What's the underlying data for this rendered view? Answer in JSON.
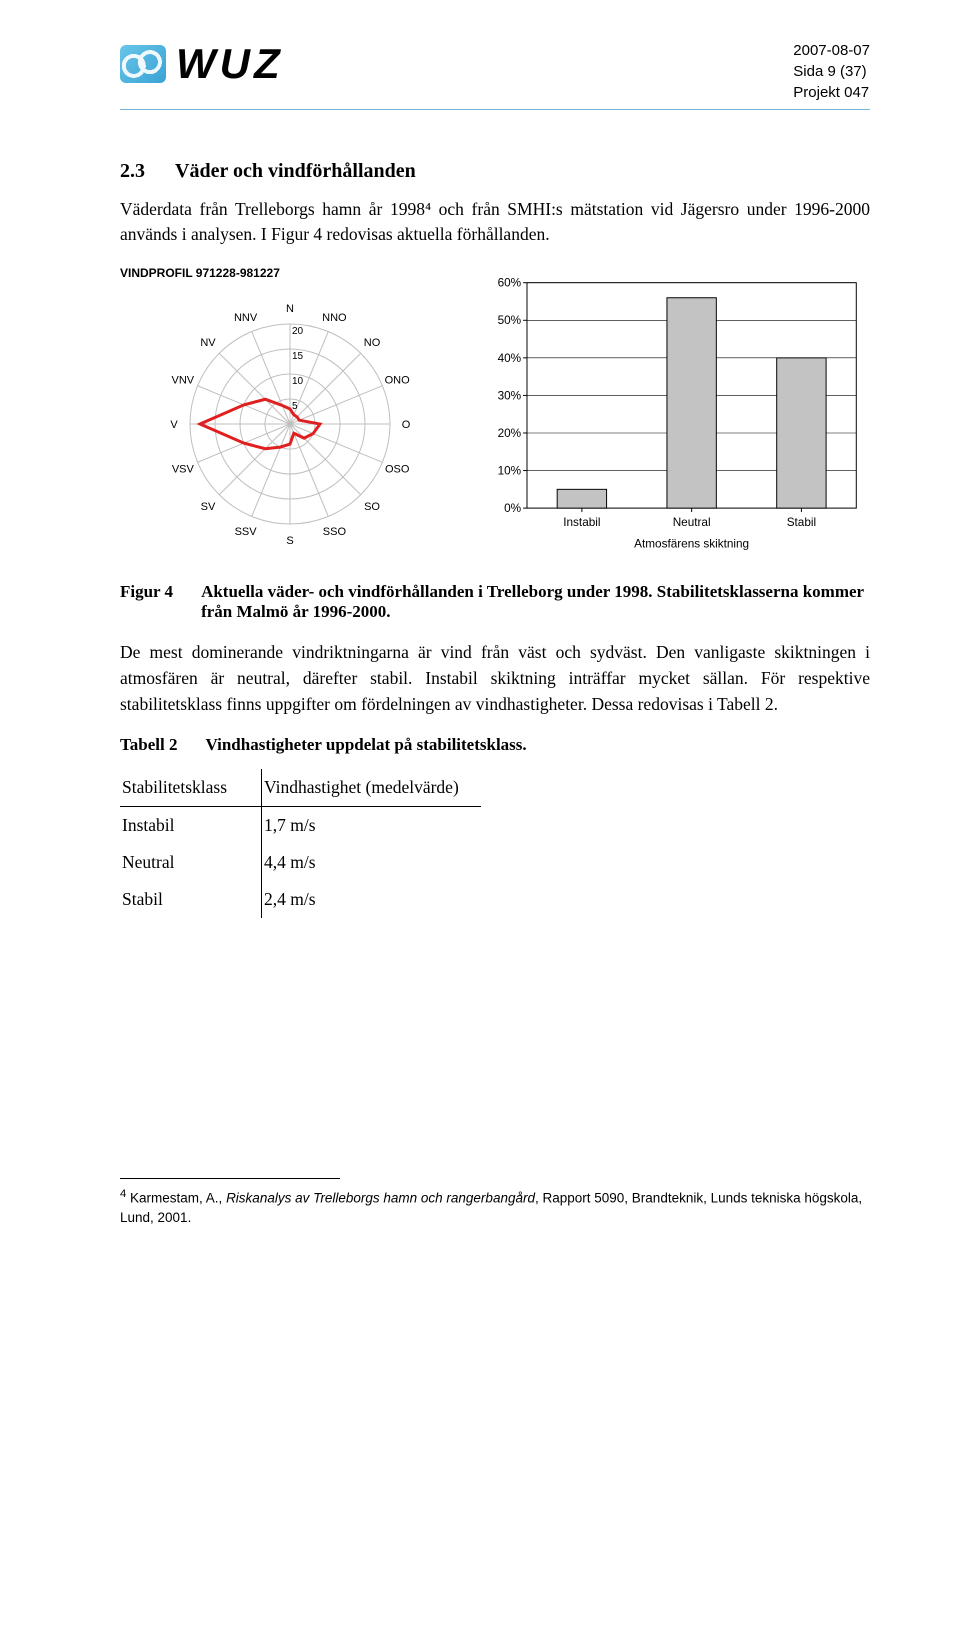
{
  "header": {
    "logo_text": "WUZ",
    "date": "2007-08-07",
    "page": "Sida 9 (37)",
    "project": "Projekt 047"
  },
  "section": {
    "num": "2.3",
    "title": "Väder och vindförhållanden"
  },
  "intro": "Väderdata från Trelleborgs hamn år 1998⁴ och från SMHI:s mätstation vid Jägersro under 1996-2000 används i analysen. I Figur 4 redovisas aktuella förhållanden.",
  "radar": {
    "title": "VINDPROFIL 971228-981227",
    "directions": [
      "N",
      "NNO",
      "NO",
      "ONO",
      "O",
      "OSO",
      "SO",
      "SSO",
      "S",
      "SSV",
      "SV",
      "VSV",
      "V",
      "VNV",
      "NV",
      "NNV"
    ],
    "ring_labels": [
      "5",
      "10",
      "15",
      "20"
    ],
    "values": [
      3,
      2,
      2,
      2,
      6,
      5,
      4,
      2,
      4,
      5,
      7,
      10,
      18,
      10,
      7,
      4
    ],
    "line_color": "#e02020",
    "line_width": 3,
    "grid_color": "#bfbfbf",
    "text_color": "#000000"
  },
  "barchart": {
    "type": "bar",
    "categories": [
      "Instabil",
      "Neutral",
      "Stabil"
    ],
    "values": [
      5,
      56,
      40
    ],
    "ylim": [
      0,
      60
    ],
    "ytick_step": 10,
    "ytick_labels": [
      "0%",
      "10%",
      "20%",
      "30%",
      "40%",
      "50%",
      "60%"
    ],
    "x_axis_label": "Atmosfärens skiktning",
    "bar_color": "#c3c3c3",
    "bar_border": "#000000",
    "axis_color": "#000000",
    "grid_color": "#000000",
    "bar_width_ratio": 0.45,
    "label_fontsize": 12
  },
  "figure4": {
    "label": "Figur 4",
    "caption": "Aktuella väder- och vindförhållanden i Trelleborg under 1998. Stabilitetsklasserna kommer från Malmö år 1996-2000."
  },
  "para2": "De mest dominerande vindriktningarna är vind från väst och sydväst. Den vanligaste skiktningen i atmosfären är neutral, därefter stabil. Instabil skiktning inträffar mycket sällan. För respektive stabilitetsklass finns uppgifter om fördelningen av vindhastigheter. Dessa redovisas i Tabell 2.",
  "table2cap": {
    "label": "Tabell 2",
    "caption": "Vindhastigheter uppdelat på stabilitetsklass."
  },
  "table2": {
    "columns": [
      "Stabilitetsklass",
      "Vindhastighet (medelvärde)"
    ],
    "rows": [
      [
        "Instabil",
        "1,7 m/s"
      ],
      [
        "Neutral",
        "4,4 m/s"
      ],
      [
        "Stabil",
        "2,4 m/s"
      ]
    ]
  },
  "footnote": {
    "num": "4",
    "author": "Karmestam, A., ",
    "title_italic": "Riskanalys av Trelleborgs hamn och rangerbangård",
    "rest": ", Rapport 5090, Brandteknik, Lunds tekniska högskola, Lund, 2001."
  }
}
